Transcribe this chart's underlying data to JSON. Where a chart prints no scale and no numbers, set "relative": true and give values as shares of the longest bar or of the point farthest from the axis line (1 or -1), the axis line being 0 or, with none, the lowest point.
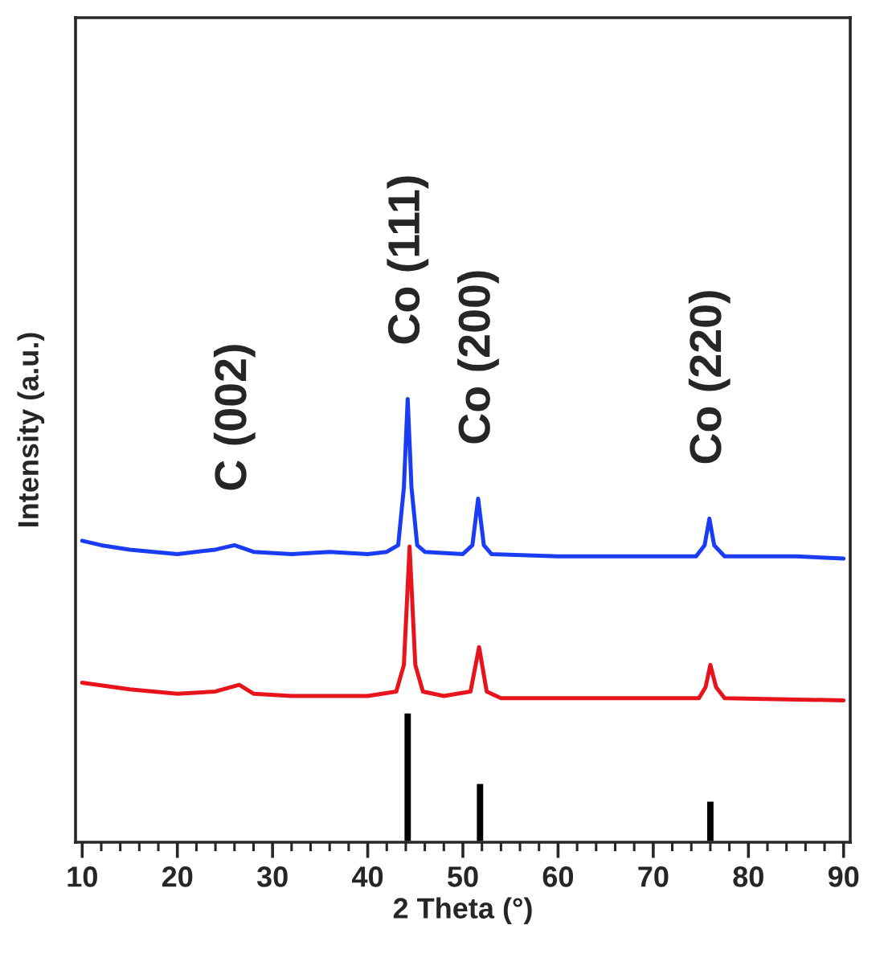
{
  "chart_data": {
    "type": "line",
    "relative": true,
    "xlabel": "2 Theta (°)",
    "ylabel": "Intensity (a.u.)",
    "xlim": [
      9.3,
      90.7
    ],
    "xticks": [
      10,
      20,
      30,
      40,
      50,
      60,
      70,
      80,
      90
    ],
    "grid": false,
    "legend": false,
    "marker": "none",
    "line_style": "solid",
    "series": [
      {
        "color": "#1a3cf5",
        "x": [
          10,
          12,
          15,
          20,
          24,
          26,
          28,
          32,
          36,
          40,
          42,
          43.2,
          43.8,
          44.2,
          44.6,
          45.2,
          46,
          50,
          51,
          51.6,
          52.2,
          53,
          60,
          70,
          74.5,
          75.4,
          75.9,
          76.4,
          77.5,
          85,
          90
        ],
        "values": [
          0.68,
          0.67,
          0.66,
          0.65,
          0.66,
          0.67,
          0.655,
          0.65,
          0.655,
          0.65,
          0.655,
          0.67,
          0.8,
          1.0,
          0.8,
          0.67,
          0.655,
          0.65,
          0.67,
          0.775,
          0.67,
          0.65,
          0.645,
          0.645,
          0.645,
          0.67,
          0.73,
          0.67,
          0.645,
          0.645,
          0.64
        ]
      },
      {
        "color": "#e8141c",
        "x": [
          10,
          15,
          20,
          24,
          26.5,
          28,
          32,
          40,
          43,
          43.8,
          44.4,
          45,
          45.8,
          48,
          50.8,
          51.7,
          52.5,
          54,
          60,
          74.8,
          75.5,
          76,
          76.6,
          77.5,
          90
        ],
        "values": [
          0.36,
          0.345,
          0.335,
          0.34,
          0.355,
          0.335,
          0.33,
          0.33,
          0.34,
          0.4,
          0.667,
          0.4,
          0.34,
          0.33,
          0.34,
          0.44,
          0.34,
          0.325,
          0.325,
          0.325,
          0.35,
          0.4,
          0.35,
          0.325,
          0.32
        ]
      },
      {
        "type": "bar",
        "color": "#000000",
        "x": [
          44.2,
          51.8,
          76
        ],
        "values": [
          0.293,
          0.134,
          0.094
        ]
      }
    ],
    "annotations": [
      {
        "text": "C (002)",
        "x": 26,
        "y": 0.67
      },
      {
        "text": "Co (111)",
        "x": 44.2,
        "y": 1.0
      },
      {
        "text": "Co (200)",
        "x": 51.6,
        "y": 0.775
      },
      {
        "text": "Co (220)",
        "x": 75.9,
        "y": 0.73
      }
    ]
  }
}
